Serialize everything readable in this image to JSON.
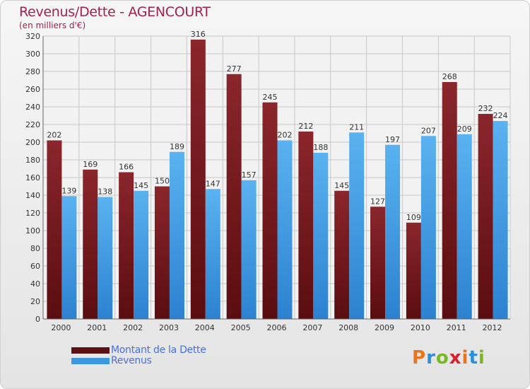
{
  "title": "Revenus/Dette - AGENCOURT",
  "subtitle": "(en milliers d'€)",
  "chart_data": {
    "type": "bar",
    "categories": [
      "2000",
      "2001",
      "2002",
      "2003",
      "2004",
      "2005",
      "2006",
      "2007",
      "2008",
      "2009",
      "2010",
      "2011",
      "2012"
    ],
    "series": [
      {
        "name": "Montant de la Dette",
        "color": "#7a1a1e",
        "values": [
          202,
          169,
          166,
          150,
          316,
          277,
          245,
          212,
          145,
          127,
          109,
          268,
          232
        ]
      },
      {
        "name": "Revenus",
        "color": "#4aa3e8",
        "values": [
          139,
          138,
          145,
          189,
          147,
          157,
          202,
          188,
          211,
          197,
          207,
          209,
          224
        ]
      }
    ],
    "ylim": [
      0,
      320
    ],
    "yticks": [
      0,
      20,
      40,
      60,
      80,
      100,
      120,
      140,
      160,
      180,
      200,
      220,
      240,
      260,
      280,
      300,
      320
    ],
    "grid": true,
    "legend_position": "bottom-left"
  },
  "logo": {
    "text": "Proxiti",
    "colors": [
      "#e8741e",
      "#2d8fd6",
      "#7ab826",
      "#d9212f",
      "#e8741e",
      "#2d8fd6",
      "#7ab826"
    ]
  }
}
